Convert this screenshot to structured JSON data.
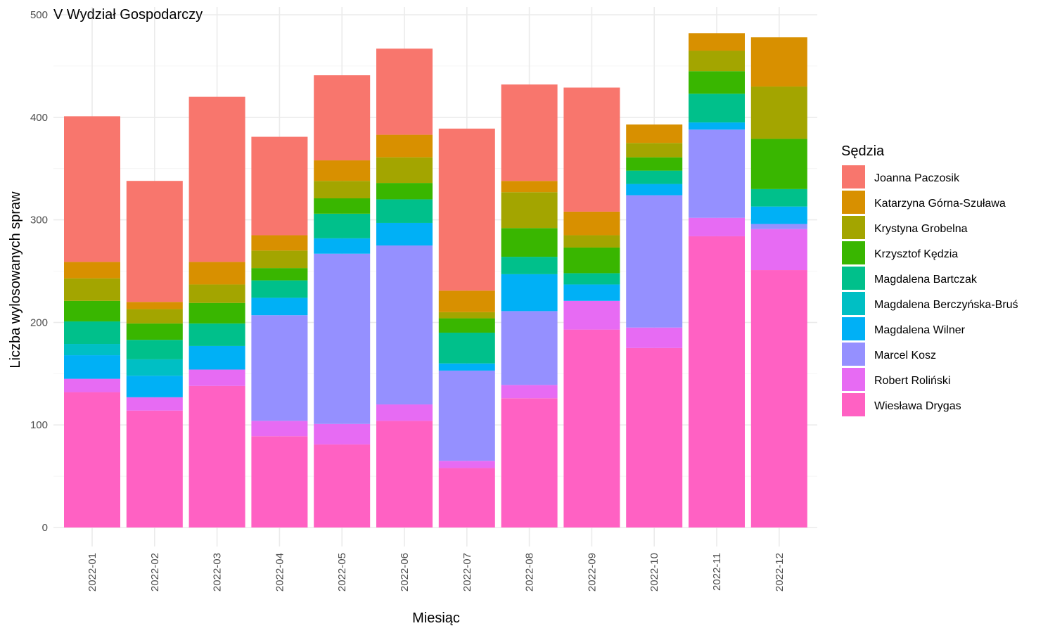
{
  "chart_data": {
    "type": "bar",
    "stacked": true,
    "title": "V Wydział Gospodarczy",
    "xlabel": "Miesiąc",
    "ylabel": "Liczba wylosowanych spraw",
    "ylim": [
      0,
      500
    ],
    "yticks": [
      0,
      100,
      200,
      300,
      400,
      500
    ],
    "grid": true,
    "legend_title": "Sędzia",
    "legend_position": "right",
    "categories": [
      "2022-01",
      "2022-02",
      "2022-03",
      "2022-04",
      "2022-05",
      "2022-06",
      "2022-07",
      "2022-08",
      "2022-09",
      "2022-10",
      "2022-11",
      "2022-12"
    ],
    "series": [
      {
        "name": "Wiesława Drygas",
        "color": "#FF61C3",
        "values": [
          132,
          114,
          138,
          89,
          81,
          104,
          58,
          126,
          193,
          175,
          284,
          251
        ]
      },
      {
        "name": "Robert Roliński",
        "color": "#E76BF3",
        "values": [
          13,
          13,
          16,
          15,
          20,
          16,
          7,
          13,
          28,
          20,
          18,
          40
        ]
      },
      {
        "name": "Marcel Kosz",
        "color": "#9590FF",
        "values": [
          0,
          0,
          0,
          103,
          166,
          155,
          88,
          72,
          0,
          129,
          86,
          5
        ]
      },
      {
        "name": "Magdalena Wilner",
        "color": "#00B0F6",
        "values": [
          23,
          21,
          23,
          17,
          15,
          22,
          7,
          36,
          16,
          11,
          7,
          17
        ]
      },
      {
        "name": "Magdalena Berczyńska-Bruś",
        "color": "#00BFC4",
        "values": [
          11,
          16,
          0,
          0,
          0,
          0,
          0,
          0,
          0,
          0,
          0,
          0
        ]
      },
      {
        "name": "Magdalena Bartczak",
        "color": "#00C08B",
        "values": [
          22,
          19,
          22,
          17,
          24,
          23,
          30,
          17,
          11,
          13,
          28,
          17
        ]
      },
      {
        "name": "Krzysztof Kędzia",
        "color": "#39B600",
        "values": [
          20,
          16,
          20,
          12,
          15,
          16,
          14,
          28,
          25,
          13,
          22,
          49
        ]
      },
      {
        "name": "Krystyna Grobelna",
        "color": "#A3A500",
        "values": [
          22,
          14,
          18,
          17,
          17,
          25,
          6,
          35,
          12,
          14,
          20,
          51
        ]
      },
      {
        "name": "Katarzyna Górna-Szuława",
        "color": "#D89000",
        "values": [
          16,
          7,
          22,
          15,
          20,
          22,
          21,
          11,
          23,
          18,
          17,
          48
        ]
      },
      {
        "name": "Joanna Paczosik",
        "color": "#F8766D",
        "values": [
          142,
          118,
          161,
          96,
          83,
          84,
          158,
          94,
          121,
          0,
          0,
          0
        ]
      }
    ],
    "legend_order": [
      "Joanna Paczosik",
      "Katarzyna Górna-Szuława",
      "Krystyna Grobelna",
      "Krzysztof Kędzia",
      "Magdalena Bartczak",
      "Magdalena Berczyńska-Bruś",
      "Magdalena Wilner",
      "Marcel Kosz",
      "Robert Roliński",
      "Wiesława Drygas"
    ]
  }
}
